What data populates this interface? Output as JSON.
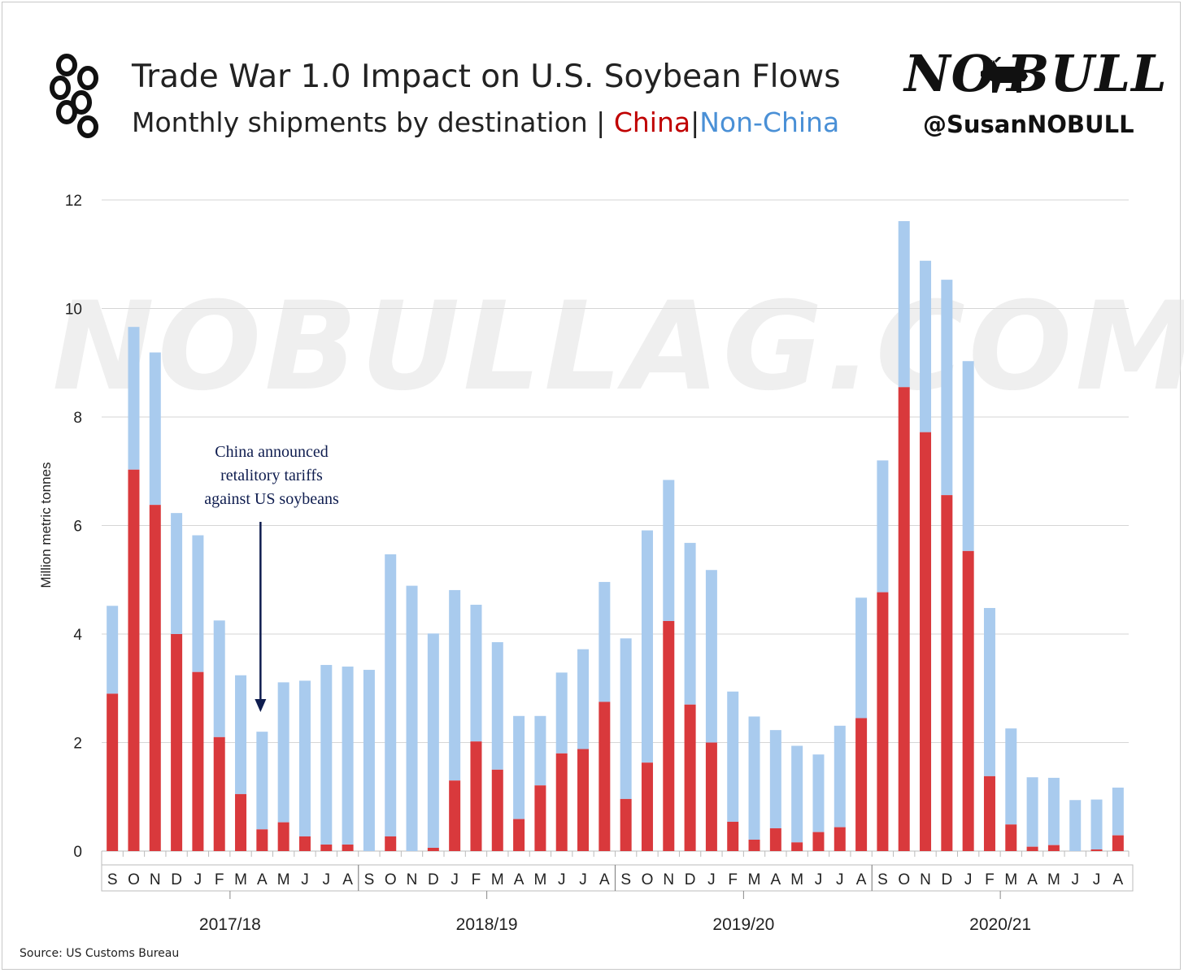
{
  "header": {
    "title": "Trade War 1.0 Impact on U.S. Soybean Flows",
    "subtitle_prefix": "Monthly shipments by destination |",
    "subtitle_china": "China",
    "subtitle_sep": "|",
    "subtitle_nonchina": "Non-China",
    "brand": "NO BULL",
    "handle": "@SusanNOBULL",
    "logo_icon": "soybean-pods-icon",
    "brand_icon": "bull-icon"
  },
  "watermark": "NOBULLAG.COM",
  "source": "Source: US Customs Bureau",
  "colors": {
    "china": "#d9393c",
    "non_china": "#a9cbee",
    "annotation": "#0f1d4f"
  },
  "chart_data": {
    "type": "bar",
    "stacked": true,
    "ylabel": "Million metric tonnes",
    "ylim": [
      0,
      12
    ],
    "yticks": [
      0,
      2,
      4,
      6,
      8,
      10,
      12
    ],
    "grid": true,
    "categories": [
      "S",
      "O",
      "N",
      "D",
      "J",
      "F",
      "M",
      "A",
      "M",
      "J",
      "J",
      "A",
      "S",
      "O",
      "N",
      "D",
      "J",
      "F",
      "M",
      "A",
      "M",
      "J",
      "J",
      "A",
      "S",
      "O",
      "N",
      "D",
      "J",
      "F",
      "M",
      "A",
      "M",
      "J",
      "J",
      "A",
      "S",
      "O",
      "N",
      "D",
      "J",
      "F",
      "M",
      "A",
      "M",
      "J",
      "J",
      "A"
    ],
    "marketing_years": [
      {
        "label": "2017/18",
        "start": 0,
        "end": 11
      },
      {
        "label": "2018/19",
        "start": 12,
        "end": 23
      },
      {
        "label": "2019/20",
        "start": 24,
        "end": 35
      },
      {
        "label": "2020/21",
        "start": 36,
        "end": 47
      }
    ],
    "series": [
      {
        "name": "China",
        "values": [
          2.9,
          7.03,
          6.38,
          4.0,
          3.3,
          2.1,
          1.05,
          0.4,
          0.53,
          0.27,
          0.12,
          0.12,
          0.0,
          0.27,
          0.0,
          0.06,
          1.3,
          2.02,
          1.5,
          0.59,
          1.21,
          1.8,
          1.88,
          2.75,
          0.96,
          1.63,
          4.24,
          2.7,
          2.0,
          0.54,
          0.21,
          0.42,
          0.16,
          0.35,
          0.44,
          2.45,
          4.77,
          8.55,
          7.72,
          6.56,
          5.53,
          1.38,
          0.49,
          0.08,
          0.11,
          0.0,
          0.03,
          0.29
        ]
      },
      {
        "name": "Non-China",
        "values": [
          1.62,
          2.63,
          2.81,
          2.23,
          2.52,
          2.15,
          2.19,
          1.8,
          2.58,
          2.87,
          3.31,
          3.28,
          3.34,
          5.2,
          4.89,
          3.95,
          3.51,
          2.52,
          2.35,
          1.9,
          1.28,
          1.49,
          1.84,
          2.21,
          2.96,
          4.28,
          2.6,
          2.98,
          3.18,
          2.4,
          2.27,
          1.81,
          1.78,
          1.43,
          1.87,
          2.22,
          2.43,
          3.06,
          3.16,
          3.97,
          3.5,
          3.1,
          1.77,
          1.28,
          1.24,
          0.94,
          0.92,
          0.88
        ]
      }
    ],
    "annotations": [
      {
        "text_lines": [
          "China announced",
          "retalitory tariffs",
          "against US soybeans"
        ],
        "x_index": 7
      }
    ]
  }
}
